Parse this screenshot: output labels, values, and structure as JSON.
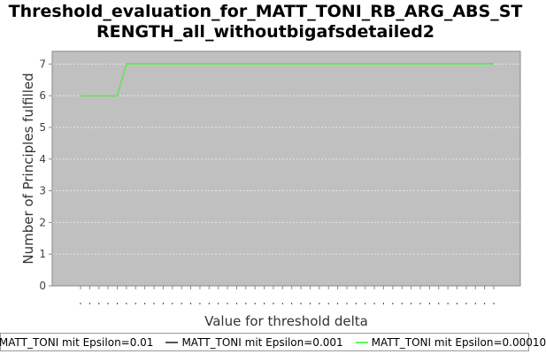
{
  "chart_data": {
    "type": "line",
    "title_line1": "Threshold_evaluation_for_MATT_TONI_RB_ARG_ABS_ST",
    "title_line2": "RENGTH_all_withoutbigafsdetailed2",
    "xlabel": "Value for threshold delta",
    "ylabel": "Number of Principles fulfilled",
    "ylim": [
      0,
      7.4
    ],
    "yticks": [
      "0",
      "1",
      "2",
      "3",
      "4",
      "5",
      "6",
      "7"
    ],
    "x_tick_count": 46,
    "x": [
      0,
      1,
      2,
      3,
      4,
      5,
      6,
      7,
      8,
      9,
      10,
      11,
      12,
      13,
      14,
      15,
      16,
      17,
      18,
      19,
      20,
      21,
      22,
      23,
      24,
      25,
      26,
      27,
      28,
      29,
      30,
      31,
      32,
      33,
      34,
      35,
      36,
      37,
      38,
      39,
      40,
      41,
      42,
      43,
      44,
      45
    ],
    "series": [
      {
        "name": "MATT_TONI mit Epsilon=0.01",
        "color": "#ff5555",
        "values": [
          6,
          6,
          6,
          6,
          6,
          7,
          7,
          7,
          7,
          7,
          7,
          7,
          7,
          7,
          7,
          7,
          7,
          7,
          7,
          7,
          7,
          7,
          7,
          7,
          7,
          7,
          7,
          7,
          7,
          7,
          7,
          7,
          7,
          7,
          7,
          7,
          7,
          7,
          7,
          7,
          7,
          7,
          7,
          7,
          7,
          7
        ]
      },
      {
        "name": "MATT_TONI mit Epsilon=0.001",
        "color": "#555555",
        "values": [
          6,
          6,
          6,
          6,
          6,
          7,
          7,
          7,
          7,
          7,
          7,
          7,
          7,
          7,
          7,
          7,
          7,
          7,
          7,
          7,
          7,
          7,
          7,
          7,
          7,
          7,
          7,
          7,
          7,
          7,
          7,
          7,
          7,
          7,
          7,
          7,
          7,
          7,
          7,
          7,
          7,
          7,
          7,
          7,
          7,
          7
        ]
      },
      {
        "name": "MATT_TONI mit Epsilon=0.00010",
        "color": "#55ff55",
        "values": [
          6,
          6,
          6,
          6,
          6,
          7,
          7,
          7,
          7,
          7,
          7,
          7,
          7,
          7,
          7,
          7,
          7,
          7,
          7,
          7,
          7,
          7,
          7,
          7,
          7,
          7,
          7,
          7,
          7,
          7,
          7,
          7,
          7,
          7,
          7,
          7,
          7,
          7,
          7,
          7,
          7,
          7,
          7,
          7,
          7,
          7
        ]
      }
    ],
    "grid": true,
    "legend_position": "bottom",
    "plot_background": "#c0c0c0"
  }
}
